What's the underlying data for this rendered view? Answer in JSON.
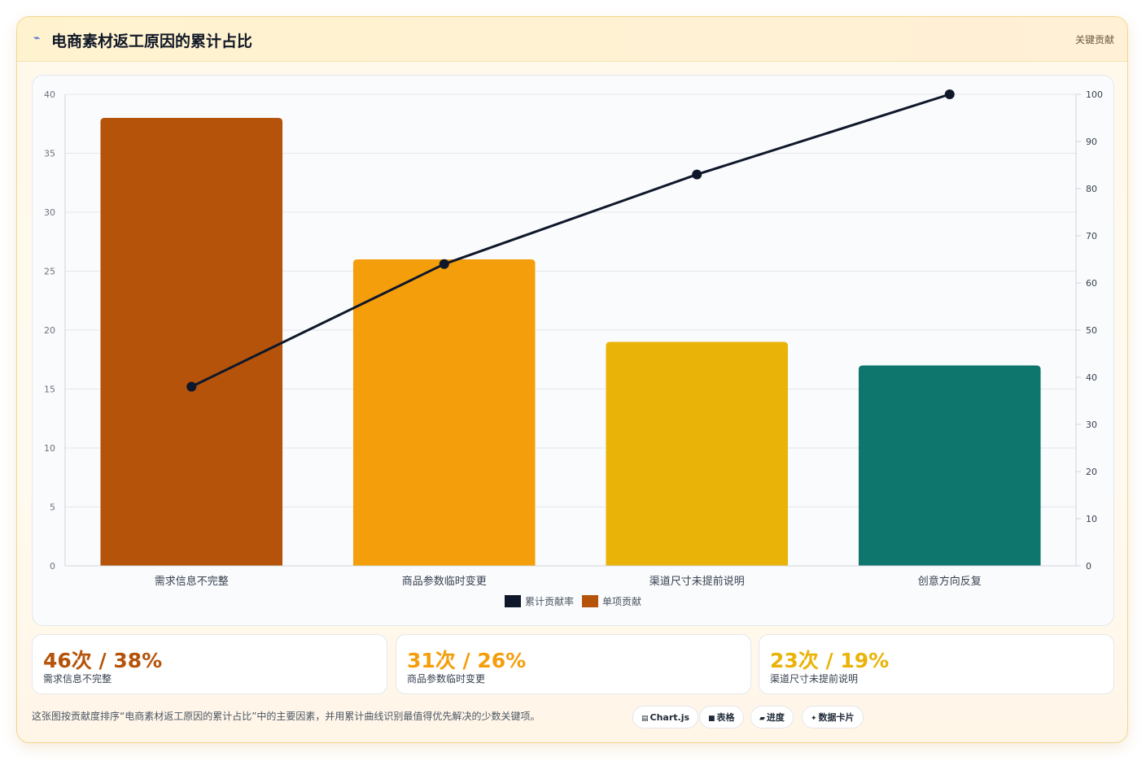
{
  "header": {
    "icon": "lightning-icon",
    "title": "电商素材返工原因的累计占比",
    "badge": "关键贡献"
  },
  "chart_data": {
    "type": "bar",
    "categories": [
      "需求信息不完整",
      "商品参数临时变更",
      "渠道尺寸未提前说明",
      "创意方向反复"
    ],
    "series": [
      {
        "name": "单项贡献",
        "type": "bar",
        "axis": "left",
        "values": [
          38,
          26,
          19,
          17
        ],
        "colors": [
          "#b45309",
          "#f59e0b",
          "#eab308",
          "#0f766e"
        ]
      },
      {
        "name": "累计贡献率",
        "type": "line",
        "axis": "right",
        "values": [
          38,
          64,
          83,
          100
        ],
        "color": "#0f172a"
      }
    ],
    "y_left": {
      "min": 0,
      "max": 40,
      "ticks": [
        0,
        5,
        10,
        15,
        20,
        25,
        30,
        35,
        40
      ]
    },
    "y_right": {
      "min": 0,
      "max": 100,
      "ticks": [
        0,
        10,
        20,
        30,
        40,
        50,
        60,
        70,
        80,
        90,
        100
      ]
    },
    "legend": {
      "position": "bottom",
      "items": [
        "累计贡献率",
        "单项贡献"
      ]
    },
    "grid": true
  },
  "stats": [
    {
      "value": "46次 / 38%",
      "label": "需求信息不完整",
      "color": "#b45309"
    },
    {
      "value": "31次 / 26%",
      "label": "商品参数临时变更",
      "color": "#f59e0b"
    },
    {
      "value": "23次 / 19%",
      "label": "渠道尺寸未提前说明",
      "color": "#eab308"
    }
  ],
  "footnote": "这张图按贡献度排序“电商素材返工原因的累计占比”中的主要因素，并用累计曲线识别最值得优先解决的少数关键项。",
  "pills": [
    {
      "icon": "chart-icon",
      "label": "Chart.js"
    },
    {
      "icon": "table-icon",
      "label": "表格"
    },
    {
      "icon": "progress-icon",
      "label": "进度"
    },
    {
      "icon": "data-card-icon",
      "label": "数据卡片"
    }
  ]
}
